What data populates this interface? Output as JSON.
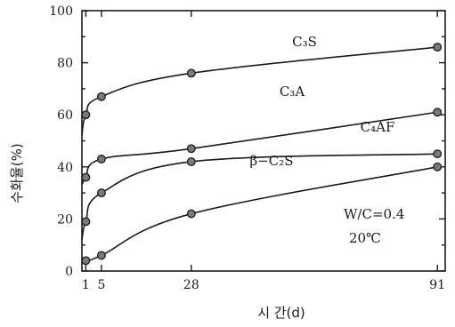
{
  "chart_data": {
    "type": "line",
    "title": "",
    "xlabel": "시 간(d)",
    "ylabel": "수화율(%)",
    "xlim": [
      0,
      93
    ],
    "ylim": [
      0,
      100
    ],
    "x_ticks": [
      1,
      5,
      28,
      91
    ],
    "y_ticks": [
      0,
      20,
      40,
      60,
      80,
      100
    ],
    "grid": false,
    "series": [
      {
        "name": "C₃S",
        "x": [
          0,
          1,
          5,
          28,
          91
        ],
        "y": [
          52,
          60,
          67,
          76,
          86
        ],
        "markers": [
          1,
          5,
          28,
          91
        ]
      },
      {
        "name": "C₃A",
        "x": [
          0,
          1,
          5,
          28,
          91
        ],
        "y": [
          33,
          36,
          43,
          47,
          61
        ],
        "markers": [
          1,
          5,
          28,
          91
        ]
      },
      {
        "name": "C₄AF",
        "x": [
          0,
          1,
          5,
          28,
          91
        ],
        "y": [
          12,
          19,
          30,
          42,
          45
        ],
        "markers": [
          1,
          5,
          28,
          91
        ]
      },
      {
        "name": "β−C₂S",
        "x": [
          1,
          5,
          28,
          91
        ],
        "y": [
          4,
          6,
          22,
          40
        ],
        "markers": [
          1,
          5,
          28,
          91
        ]
      }
    ],
    "annotations": [
      "W/C=0.4",
      "20℃"
    ]
  }
}
